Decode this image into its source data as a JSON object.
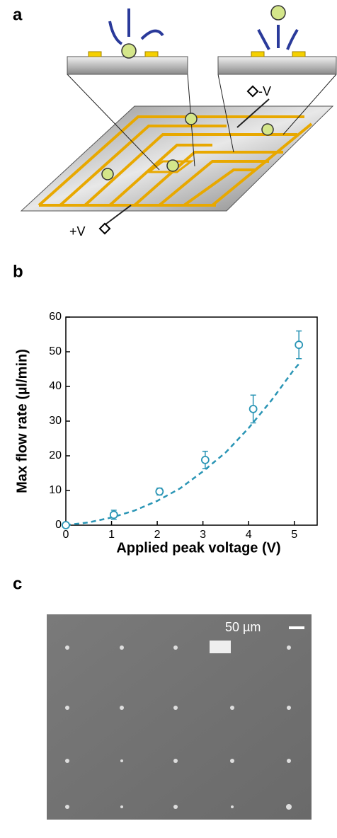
{
  "panels": [
    "a",
    "b",
    "c"
  ],
  "diagram": {
    "labels": [
      "-V",
      "+V"
    ]
  },
  "chart_data": {
    "type": "scatter",
    "xlabel": "Applied peak voltage (V)",
    "ylabel": "Max flow rate (µl/min)",
    "x": [
      0,
      1.05,
      2.05,
      3.05,
      4.1,
      5.1
    ],
    "values": [
      0,
      3,
      9.7,
      18.8,
      33.5,
      52
    ],
    "errors": [
      0.5,
      1.3,
      1,
      2.5,
      4,
      4
    ],
    "fit": {
      "x": [
        0,
        0.5,
        1,
        1.5,
        2,
        2.5,
        3,
        3.5,
        4,
        4.5,
        5,
        5.1
      ],
      "values": [
        0,
        0.8,
        2.2,
        4.2,
        7,
        10.6,
        15.5,
        21,
        28,
        36,
        45,
        46.5
      ]
    },
    "color": "#2a95b5",
    "xlim": [
      0,
      5.5
    ],
    "ylim": [
      0,
      60
    ],
    "xticks": [
      0,
      1,
      2,
      3,
      4,
      5
    ],
    "yticks": [
      0,
      10,
      20,
      30,
      40,
      50,
      60
    ]
  },
  "image": {
    "scale_bar": "50 µm"
  }
}
